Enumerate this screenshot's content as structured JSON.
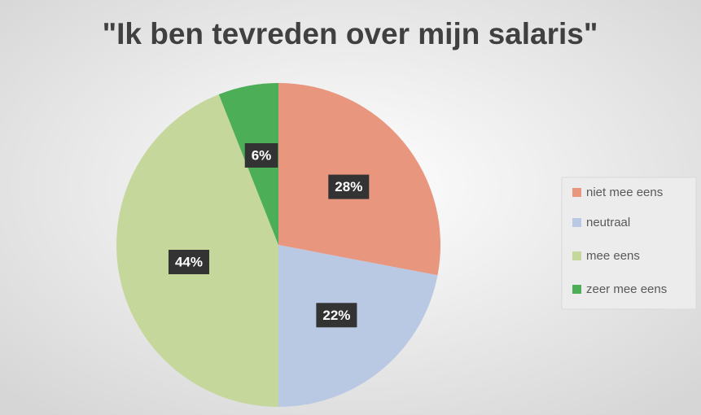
{
  "chart_data": {
    "type": "pie",
    "title": "\"Ik ben tevreden over mijn salaris\"",
    "categories": [
      "niet mee eens",
      "neutraal",
      "mee eens",
      "zeer mee eens"
    ],
    "values": [
      28,
      22,
      44,
      6
    ],
    "value_labels": [
      "28%",
      "22%",
      "44%",
      "6%"
    ],
    "colors": [
      "#e9967f",
      "#b9c8e3",
      "#c6d79c",
      "#4cae56"
    ],
    "legend": "right"
  }
}
